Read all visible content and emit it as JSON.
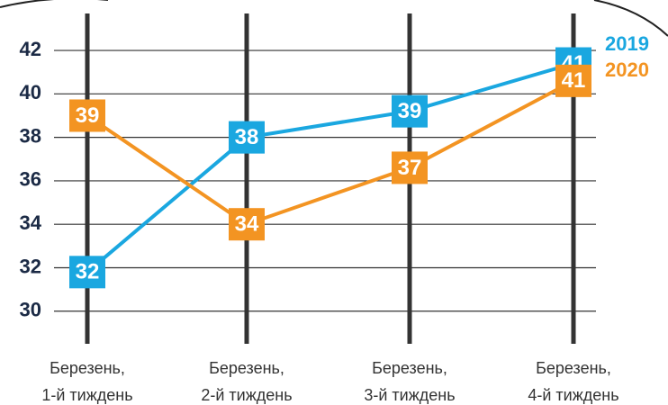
{
  "chart_data": {
    "type": "line",
    "categories": [
      [
        "Березень,",
        "1-й тиждень"
      ],
      [
        "Березень,",
        "2-й тиждень"
      ],
      [
        "Березень,",
        "3-й тиждень"
      ],
      [
        "Березень,",
        "4-й тиждень"
      ]
    ],
    "series": [
      {
        "name": "2019",
        "color": "#1aa7e0",
        "values": [
          31.8,
          38,
          39.2,
          41.4
        ],
        "value_labels": [
          "32",
          "38",
          "39",
          "41"
        ]
      },
      {
        "name": "2020",
        "color": "#f39422",
        "values": [
          39,
          34,
          36.6,
          40.6
        ],
        "value_labels": [
          "39",
          "34",
          "37",
          "41"
        ]
      }
    ],
    "ylim": [
      28.5,
      43.7
    ],
    "yticks": [
      30,
      32,
      34,
      36,
      38,
      40,
      42
    ],
    "grid": true
  }
}
